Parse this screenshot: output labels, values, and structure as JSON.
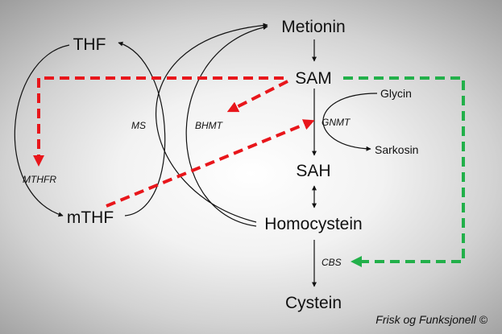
{
  "metabolites": {
    "metionin": "Metionin",
    "thf": "THF",
    "sam": "SAM",
    "sah": "SAH",
    "mthf": "mTHF",
    "homocystein": "Homocystein",
    "cystein": "Cystein",
    "glycin": "Glycin",
    "sarkosin": "Sarkosin"
  },
  "enzymes": {
    "ms": "MS",
    "bhmt": "BHMT",
    "gnmt": "GNMT",
    "mthfr": "MTHFR",
    "cbs": "CBS"
  },
  "credit": "Frisk og Funksjonell ©",
  "colors": {
    "red_dash": "#e8161b",
    "green_dash": "#22b04a",
    "line": "#111111"
  }
}
